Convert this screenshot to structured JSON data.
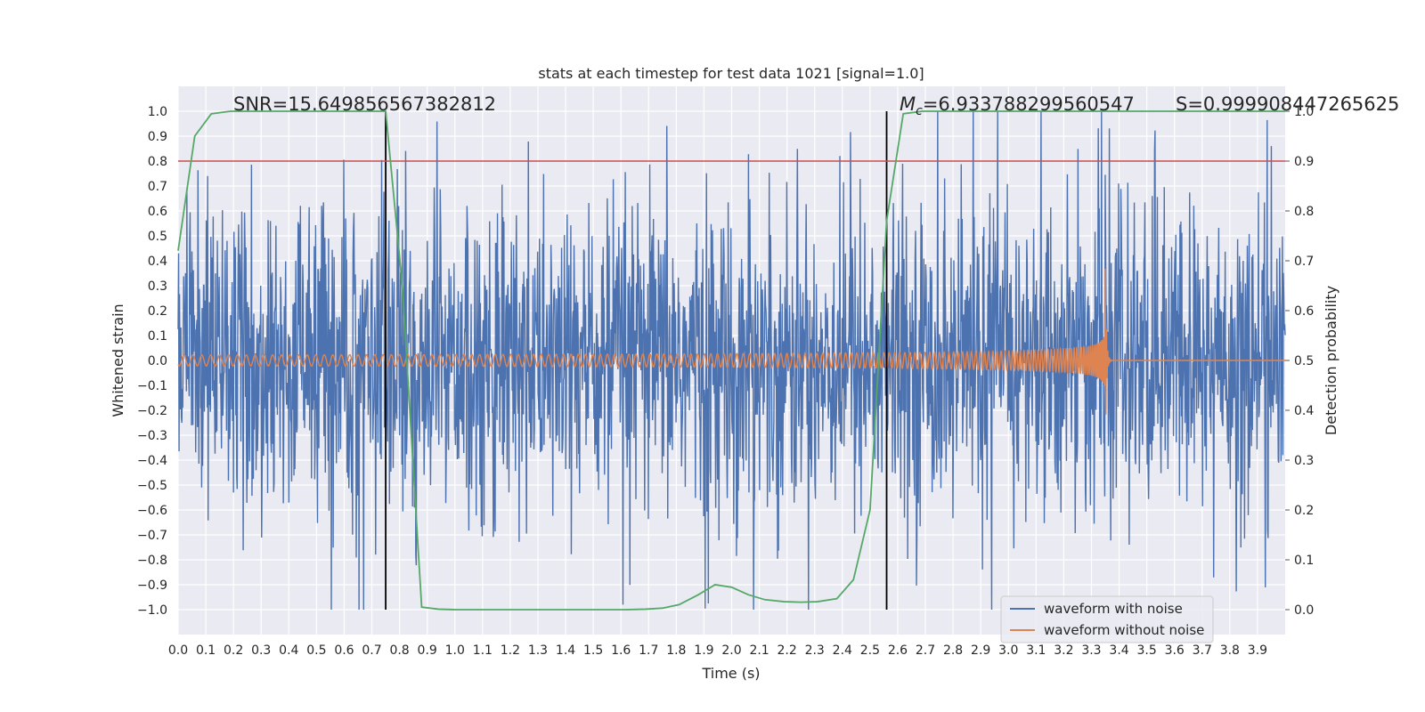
{
  "chart_data": {
    "type": "line",
    "title": "stats at each timestep for test data 1021 [signal=1.0]",
    "xlabel": "Time (s)",
    "ylabel": "Whitened strain",
    "ylabel_right": "Detection probability",
    "xlim": [
      0.0,
      4.0
    ],
    "ylim": [
      -1.1,
      1.1
    ],
    "ylim_right": [
      -0.05,
      1.05
    ],
    "grid": true,
    "x_ticks": [
      "0.0",
      "0.1",
      "0.2",
      "0.3",
      "0.4",
      "0.5",
      "0.6",
      "0.7",
      "0.8",
      "0.9",
      "1.0",
      "1.1",
      "1.2",
      "1.3",
      "1.4",
      "1.5",
      "1.6",
      "1.7",
      "1.8",
      "1.9",
      "2.0",
      "2.1",
      "2.2",
      "2.3",
      "2.4",
      "2.5",
      "2.6",
      "2.7",
      "2.8",
      "2.9",
      "3.0",
      "3.1",
      "3.2",
      "3.3",
      "3.4",
      "3.5",
      "3.6",
      "3.7",
      "3.8",
      "3.9"
    ],
    "y_ticks_left": [
      "1.0",
      "0.9",
      "0.8",
      "0.7",
      "0.6",
      "0.5",
      "0.4",
      "0.3",
      "0.2",
      "0.1",
      "0.0",
      "−0.1",
      "−0.2",
      "−0.3",
      "−0.4",
      "−0.5",
      "−0.6",
      "−0.7",
      "−0.8",
      "−0.9",
      "−1.0"
    ],
    "y_ticks_right": [
      "1.0",
      "0.9",
      "0.8",
      "0.7",
      "0.6",
      "0.5",
      "0.4",
      "0.3",
      "0.2",
      "0.1",
      "0.0"
    ],
    "annotations": {
      "snr": "SNR=15.649856567382812",
      "mc_symbol": "M",
      "mc_subscript": "c",
      "mc_value": "=6.933788299560547",
      "s": "S=0.999908447265625"
    },
    "threshold": {
      "value": 0.9,
      "axis": "right",
      "color": "#c44e52"
    },
    "vlines": [
      0.75,
      2.56
    ],
    "series": [
      {
        "name": "waveform with noise",
        "axis": "left",
        "color": "#4c72b0",
        "kind": "noise",
        "amplitude_range": [
          -1.0,
          1.0
        ]
      },
      {
        "name": "waveform without noise",
        "axis": "left",
        "color": "#dd8452",
        "kind": "chirp",
        "merger_time": 3.35
      },
      {
        "name": "Detection probability",
        "axis": "right",
        "color": "#55a868",
        "x": [
          0.0,
          0.06,
          0.12,
          0.19,
          0.25,
          0.31,
          0.38,
          0.44,
          0.5,
          0.56,
          0.62,
          0.69,
          0.75,
          0.81,
          0.88,
          0.94,
          1.0,
          1.06,
          1.12,
          1.19,
          1.25,
          1.31,
          1.38,
          1.44,
          1.5,
          1.56,
          1.62,
          1.69,
          1.75,
          1.81,
          1.88,
          1.94,
          2.0,
          2.06,
          2.12,
          2.19,
          2.25,
          2.31,
          2.38,
          2.44,
          2.5,
          2.56,
          2.62,
          2.69,
          2.75,
          2.81,
          2.88,
          2.94,
          3.0,
          3.06,
          3.12,
          3.19,
          3.25,
          3.31,
          3.38,
          3.44,
          3.5,
          3.56,
          3.62,
          3.69,
          3.75,
          3.81,
          3.88,
          3.94,
          4.0
        ],
        "y": [
          0.72,
          0.95,
          0.995,
          1.0,
          1.0,
          1.0,
          1.0,
          1.0,
          1.0,
          1.0,
          1.0,
          1.0,
          1.0,
          0.65,
          0.005,
          0.001,
          0.0,
          0.0,
          0.0,
          0.0,
          0.0,
          0.0,
          0.0,
          0.0,
          0.0,
          0.0,
          0.0,
          0.001,
          0.003,
          0.01,
          0.03,
          0.05,
          0.045,
          0.03,
          0.02,
          0.016,
          0.015,
          0.016,
          0.022,
          0.06,
          0.2,
          0.78,
          0.995,
          1.0,
          1.0,
          1.0,
          1.0,
          1.0,
          1.0,
          1.0,
          1.0,
          1.0,
          1.0,
          1.0,
          1.0,
          1.0,
          1.0,
          1.0,
          1.0,
          1.0,
          1.0,
          1.0,
          1.0,
          1.0,
          1.0
        ]
      }
    ],
    "legend": {
      "position": "lower-right",
      "entries": [
        "waveform with noise",
        "waveform without noise"
      ]
    },
    "colors": {
      "plot_background": "#eaeaf2",
      "grid": "#ffffff",
      "vline": "#000000",
      "legend_background": "#eaeaf2",
      "legend_border": "#cccccc"
    }
  }
}
